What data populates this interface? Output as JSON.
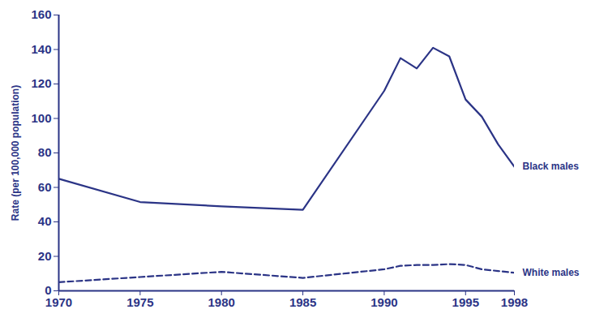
{
  "chart_data": {
    "type": "line",
    "y_label": "Rate (per 100,000 population)",
    "x": [
      1970,
      1975,
      1980,
      1985,
      1990,
      1991,
      1992,
      1993,
      1994,
      1995,
      1996,
      1997,
      1998
    ],
    "series": [
      {
        "name": "Black males",
        "color": "#2b3486",
        "line_style": "solid",
        "values": [
          65,
          51.5,
          49,
          47,
          116,
          135,
          129,
          141,
          136,
          111,
          101,
          85,
          72
        ]
      },
      {
        "name": "White males",
        "color": "#2b3486",
        "line_style": "dashed",
        "values": [
          5,
          8,
          11,
          7.5,
          12.5,
          14.5,
          15,
          15,
          15.5,
          15,
          12.5,
          11.5,
          10.5
        ]
      }
    ],
    "xlim": [
      1970,
      1998
    ],
    "xticks": [
      1970,
      1975,
      1980,
      1985,
      1990,
      1995,
      1998
    ],
    "ylim": [
      0,
      160
    ],
    "yticks": [
      0,
      20,
      40,
      60,
      80,
      100,
      120,
      140,
      160
    ],
    "grid": false
  }
}
